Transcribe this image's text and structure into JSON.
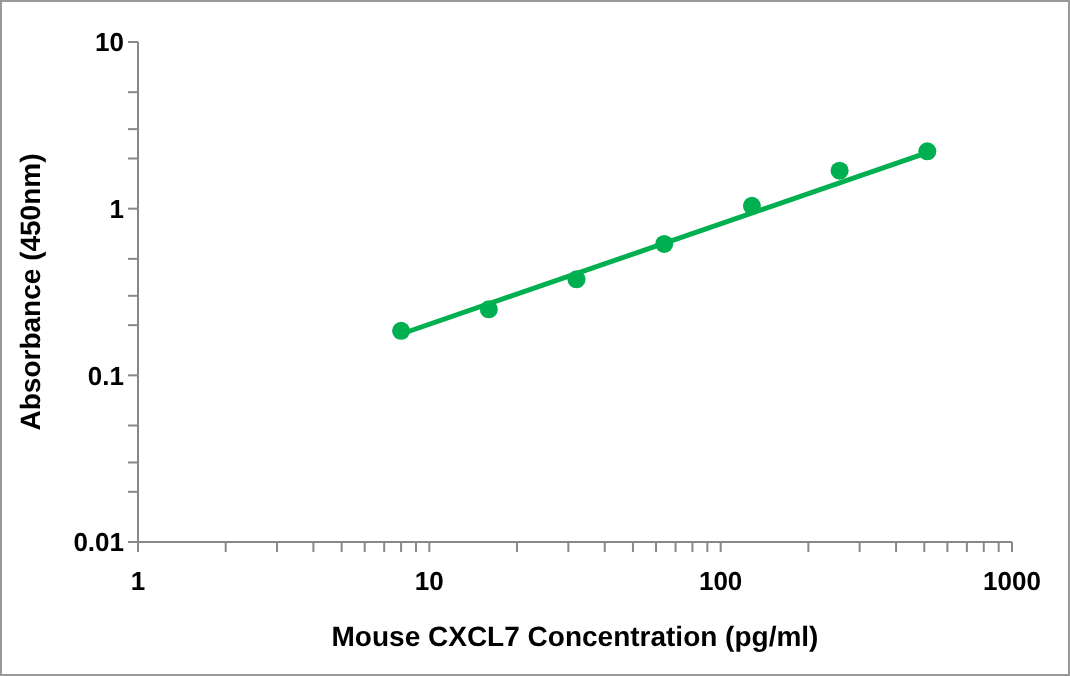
{
  "chart_data": {
    "type": "scatter",
    "xlabel": "Mouse CXCL7 Concentration (pg/ml)",
    "ylabel": "Absorbance (450nm)",
    "log": "xy",
    "line_style": "solid",
    "xlim": [
      1,
      1000
    ],
    "ylim": [
      0.01,
      10
    ],
    "xticks": [
      1,
      {
        "value": 2,
        "label": null
      },
      {
        "value": 3,
        "label": null
      },
      {
        "value": 4,
        "label": null
      },
      {
        "value": 5,
        "label": null
      },
      {
        "value": 6,
        "label": null
      },
      {
        "value": 7,
        "label": null
      },
      {
        "value": 8,
        "label": null
      },
      {
        "value": 9,
        "label": null
      },
      10,
      {
        "value": 20,
        "label": null
      },
      {
        "value": 30,
        "label": null
      },
      {
        "value": 40,
        "label": null
      },
      {
        "value": 50,
        "label": null
      },
      {
        "value": 60,
        "label": null
      },
      {
        "value": 70,
        "label": null
      },
      {
        "value": 80,
        "label": null
      },
      {
        "value": 90,
        "label": null
      },
      100,
      {
        "value": 200,
        "label": null
      },
      {
        "value": 300,
        "label": null
      },
      {
        "value": 400,
        "label": null
      },
      {
        "value": 500,
        "label": null
      },
      {
        "value": 600,
        "label": null
      },
      {
        "value": 700,
        "label": null
      },
      {
        "value": 800,
        "label": null
      },
      {
        "value": 900,
        "label": null
      },
      1000
    ],
    "yticks": [
      0.01,
      {
        "value": 0.02,
        "label": null
      },
      {
        "value": 0.03,
        "label": null
      },
      {
        "value": 0.05,
        "label": null
      },
      0.1,
      {
        "value": 0.2,
        "label": null
      },
      {
        "value": 0.3,
        "label": null
      },
      {
        "value": 0.5,
        "label": null
      },
      1,
      {
        "value": 2,
        "label": null
      },
      {
        "value": 3,
        "label": null
      },
      {
        "value": 5,
        "label": null
      },
      10
    ],
    "series": [
      {
        "marker": "circle",
        "color": "#00b050",
        "x": [
          8,
          16,
          32,
          64,
          128,
          256,
          512
        ],
        "values": [
          0.185,
          0.249,
          0.377,
          0.614,
          1.04,
          1.69,
          2.21
        ]
      },
      {
        "type": "line",
        "marker": "none",
        "color": "#00b050",
        "x": [
          8,
          512
        ],
        "values": [
          0.177,
          2.17
        ]
      }
    ]
  }
}
